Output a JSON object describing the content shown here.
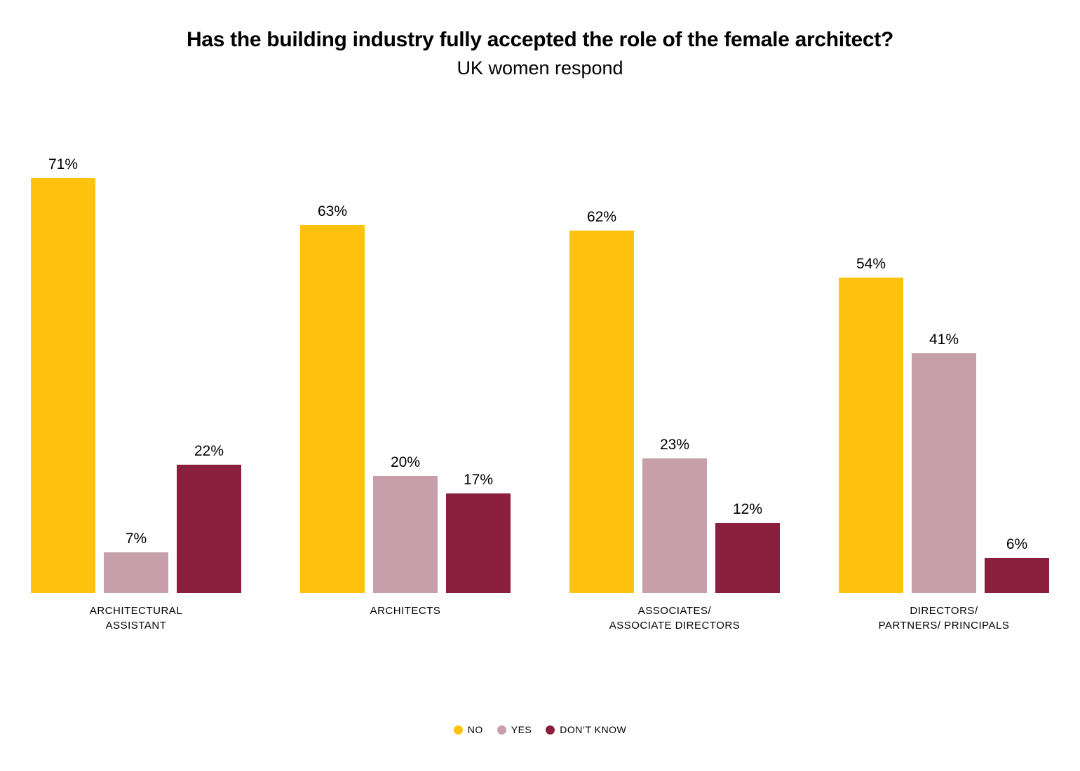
{
  "title": "Has the building industry fully accepted the role of the female architect?",
  "subtitle": "UK women respond",
  "legend": [
    {
      "label": "NO",
      "color": "#FFC20E"
    },
    {
      "label": "YES",
      "color": "#C79FAA"
    },
    {
      "label": "DON’T KNOW",
      "color": "#8A1F3E"
    }
  ],
  "chart_data": {
    "type": "bar",
    "title": "Has the building industry fully accepted the role of the female architect?",
    "subtitle": "UK women respond",
    "categories": [
      "ARCHITECTURAL ASSISTANT",
      "ARCHITECTS",
      "ASSOCIATES/ ASSOCIATE DIRECTORS",
      "DIRECTORS/ PARTNERS/ PRINCIPALS"
    ],
    "category_lines": [
      [
        "ARCHITECTURAL",
        "ASSISTANT"
      ],
      [
        "ARCHITECTS"
      ],
      [
        "ASSOCIATES/",
        "ASSOCIATE DIRECTORS"
      ],
      [
        "DIRECTORS/",
        "PARTNERS/ PRINCIPALS"
      ]
    ],
    "series": [
      {
        "name": "NO",
        "color": "#FFC20E",
        "values": [
          71,
          63,
          62,
          54
        ]
      },
      {
        "name": "YES",
        "color": "#C79FAA",
        "values": [
          7,
          20,
          23,
          41
        ]
      },
      {
        "name": "DON’T KNOW",
        "color": "#8A1F3E",
        "values": [
          22,
          17,
          12,
          6
        ]
      }
    ],
    "value_suffix": "%",
    "ylim": [
      0,
      72
    ],
    "grid": false,
    "legend_position": "bottom"
  }
}
